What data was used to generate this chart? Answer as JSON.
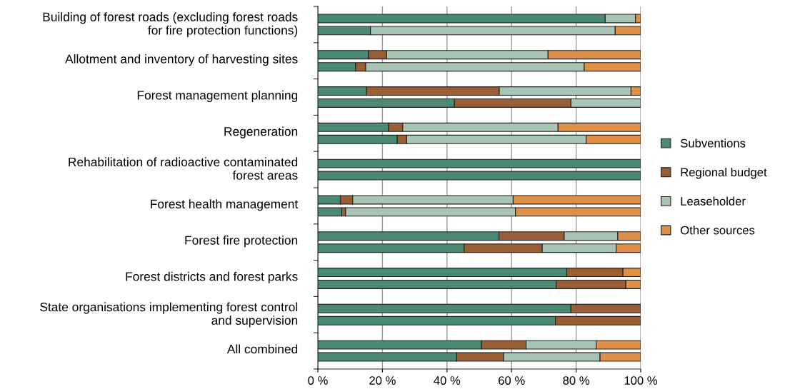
{
  "chart_data": {
    "type": "bar",
    "orientation": "horizontal",
    "stacked": true,
    "categories": [
      "Building of forest roads (excluding forest roads\nfor fire protection functions)",
      null,
      null,
      "Allotment and inventory of harvesting sites",
      null,
      null,
      "Forest management planning",
      null,
      null,
      "Regeneration",
      null,
      null,
      "Rehabilitation of radioactive contaminated\nforest areas",
      null,
      null,
      "Forest health management",
      null,
      null,
      "Forest fire protection",
      null,
      null,
      "Forest districts and forest parks",
      null,
      null,
      "State organisations implementing forest control\nand supervision",
      null,
      null,
      "All combined",
      null
    ],
    "series": [
      {
        "name": "Subventions",
        "color": "#4a8a72",
        "values": [
          89.0,
          16.3,
          null,
          15.7,
          11.7,
          null,
          15.1,
          42.3,
          null,
          21.9,
          24.6,
          null,
          100,
          100,
          null,
          7.0,
          7.4,
          null,
          56.1,
          45.3,
          null,
          77.1,
          73.8,
          null,
          78.4,
          73.6,
          null,
          50.7,
          43.0
        ]
      },
      {
        "name": "Regional budget",
        "color": "#9a5e34",
        "values": [
          null,
          null,
          null,
          5.6,
          3.1,
          null,
          41.1,
          36.1,
          null,
          4.4,
          2.9,
          null,
          null,
          null,
          null,
          3.8,
          1.2,
          null,
          20.2,
          24.2,
          null,
          17.4,
          21.6,
          null,
          21.6,
          26.4,
          null,
          13.8,
          14.5
        ]
      },
      {
        "name": "Leaseholder",
        "color": "#a8c4b4",
        "values": [
          9.4,
          75.8,
          null,
          50.0,
          67.7,
          null,
          40.8,
          21.6,
          null,
          48.1,
          55.6,
          null,
          null,
          null,
          null,
          49.7,
          52.6,
          null,
          16.6,
          22.9,
          null,
          null,
          null,
          null,
          null,
          null,
          null,
          21.7,
          29.9
        ]
      },
      {
        "name": "Other sources",
        "color": "#de9048",
        "values": [
          1.6,
          7.9,
          null,
          28.7,
          17.5,
          null,
          3.0,
          null,
          null,
          25.6,
          16.9,
          null,
          null,
          null,
          null,
          39.5,
          38.8,
          null,
          7.1,
          7.6,
          null,
          5.5,
          4.6,
          null,
          null,
          null,
          null,
          13.8,
          12.6
        ]
      }
    ],
    "xlim": [
      0,
      100
    ],
    "xticks": [
      {
        "value": 0,
        "label": "0 %"
      },
      {
        "value": 20,
        "label": "20 %"
      },
      {
        "value": 40,
        "label": "40 %"
      },
      {
        "value": 60,
        "label": "60 %"
      },
      {
        "value": 80,
        "label": "80 %"
      },
      {
        "value": 100,
        "label": "100 %"
      }
    ],
    "grid": "x",
    "legend": "right"
  }
}
